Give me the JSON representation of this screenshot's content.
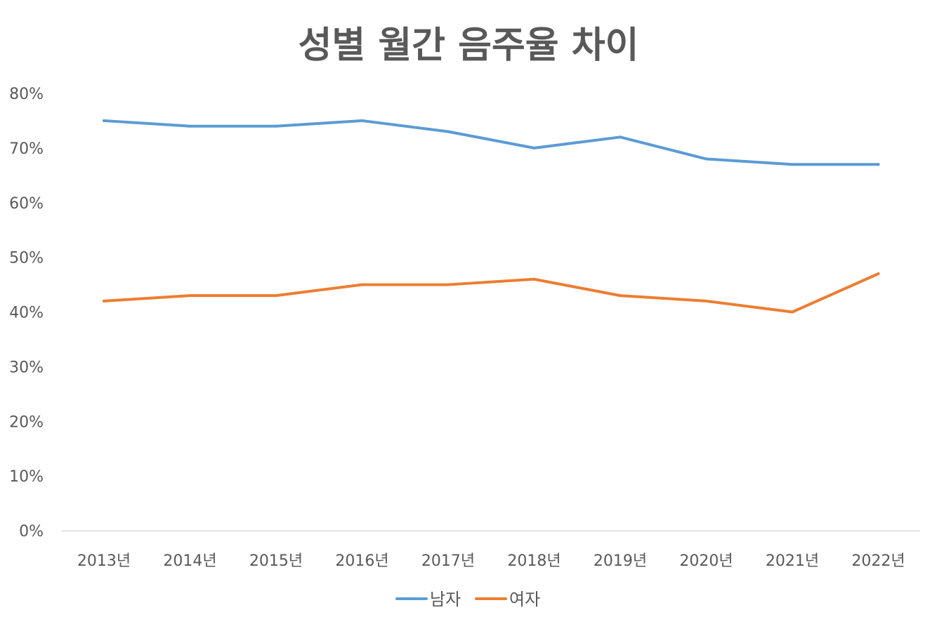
{
  "chart_data": {
    "type": "line",
    "title": "성별 월간 음주율 차이",
    "xlabel": "",
    "ylabel": "",
    "categories": [
      "2013년",
      "2014년",
      "2015년",
      "2016년",
      "2017년",
      "2018년",
      "2019년",
      "2020년",
      "2021년",
      "2022년"
    ],
    "ylim": [
      0,
      80
    ],
    "yticks": [
      "0%",
      "10%",
      "20%",
      "30%",
      "40%",
      "50%",
      "60%",
      "70%",
      "80%"
    ],
    "grid": false,
    "legend_position": "bottom",
    "series": [
      {
        "name": "남자",
        "color": "#5B9BD5",
        "values": [
          75,
          74,
          74,
          75,
          73,
          70,
          72,
          68,
          67,
          67
        ]
      },
      {
        "name": "여자",
        "color": "#ED7D31",
        "values": [
          42,
          43,
          43,
          45,
          45,
          46,
          43,
          42,
          40,
          47
        ]
      }
    ]
  }
}
